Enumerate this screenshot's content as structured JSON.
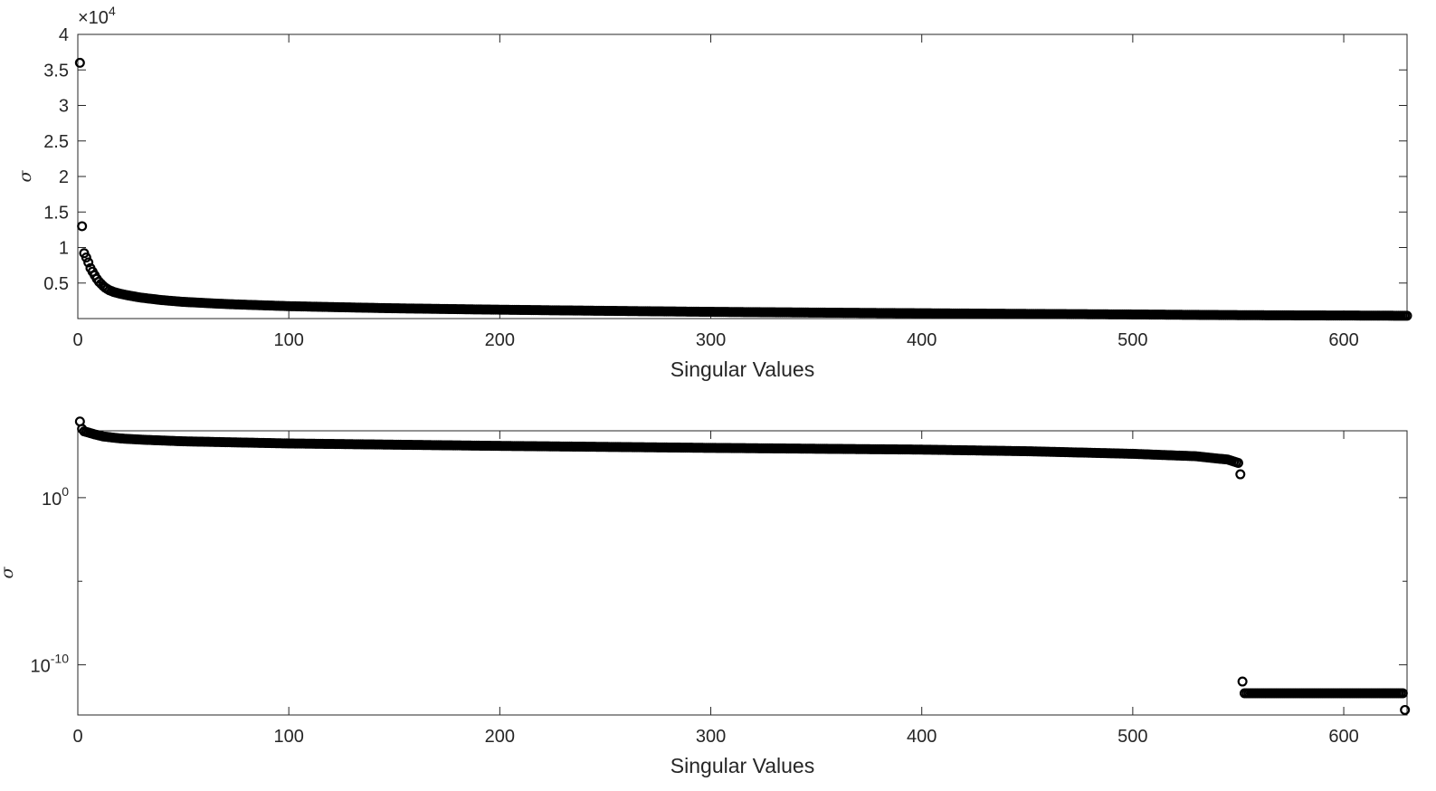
{
  "chart_data": [
    {
      "type": "scatter",
      "title": "",
      "xlabel": "Singular Values",
      "ylabel": "σ",
      "xlim": [
        0,
        630
      ],
      "ylim": [
        0,
        40000
      ],
      "yscale": "linear",
      "y_exponent_label": {
        "base": "×10",
        "exp": "4"
      },
      "marker": "circle-open",
      "marker_color": "#000000",
      "grid": false,
      "x_ticks": [
        0,
        100,
        200,
        300,
        400,
        500,
        600
      ],
      "x_tick_labels": [
        "0",
        "100",
        "200",
        "300",
        "400",
        "500",
        "600"
      ],
      "y_ticks": [
        5000,
        10000,
        15000,
        20000,
        25000,
        30000,
        35000,
        40000
      ],
      "y_tick_labels": [
        "0.5",
        "1",
        "1.5",
        "2",
        "2.5",
        "3",
        "3.5",
        "4"
      ],
      "series": [
        {
          "points": [
            [
              1,
              36000
            ],
            [
              2,
              13000
            ],
            [
              3,
              9200
            ],
            [
              4,
              8600
            ],
            [
              5,
              7900
            ],
            [
              6,
              7100
            ],
            [
              7,
              6600
            ],
            [
              8,
              6100
            ],
            [
              9,
              5600
            ],
            [
              10,
              5200
            ],
            [
              11,
              4900
            ],
            [
              12,
              4600
            ],
            [
              13,
              4350
            ],
            [
              14,
              4150
            ],
            [
              15,
              3980
            ],
            [
              17,
              3750
            ],
            [
              20,
              3500
            ],
            [
              25,
              3200
            ],
            [
              30,
              2950
            ],
            [
              40,
              2600
            ],
            [
              50,
              2350
            ],
            [
              70,
              2050
            ],
            [
              100,
              1750
            ],
            [
              150,
              1450
            ],
            [
              200,
              1250
            ],
            [
              300,
              950
            ],
            [
              400,
              750
            ],
            [
              500,
              580
            ],
            [
              553,
              480
            ],
            [
              630,
              400
            ]
          ]
        }
      ]
    },
    {
      "type": "scatter",
      "title": "",
      "xlabel": "Singular Values",
      "ylabel": "σ",
      "xlim": [
        0,
        630
      ],
      "ylim": [
        1e-13,
        10000.0
      ],
      "yscale": "log",
      "marker": "circle-open",
      "marker_color": "#000000",
      "grid": false,
      "x_ticks": [
        0,
        100,
        200,
        300,
        400,
        500,
        600
      ],
      "x_tick_labels": [
        "0",
        "100",
        "200",
        "300",
        "400",
        "500",
        "600"
      ],
      "y_ticks": [
        1e-10,
        1
      ],
      "y_tick_labels": [
        {
          "base": "10",
          "exp": "-10"
        },
        {
          "base": "10",
          "exp": "0"
        }
      ],
      "y_minor_ticks": [
        1e-05
      ],
      "series": [
        {
          "points": [
            [
              1,
              36000
            ],
            [
              2,
              13000
            ],
            [
              3,
              9200
            ],
            [
              5,
              7900
            ],
            [
              8,
              6100
            ],
            [
              12,
              4600
            ],
            [
              20,
              3500
            ],
            [
              30,
              2950
            ],
            [
              50,
              2350
            ],
            [
              100,
              1750
            ],
            [
              200,
              1250
            ],
            [
              300,
              950
            ],
            [
              400,
              750
            ],
            [
              450,
              600
            ],
            [
              500,
              420
            ],
            [
              530,
              300
            ],
            [
              545,
              190
            ],
            [
              550,
              120
            ],
            [
              551,
              25
            ],
            [
              552,
              1e-11
            ],
            [
              553,
              2e-12
            ],
            [
              600,
              2e-12
            ],
            [
              628,
              2e-12
            ],
            [
              629,
              2e-13
            ]
          ]
        }
      ]
    }
  ]
}
